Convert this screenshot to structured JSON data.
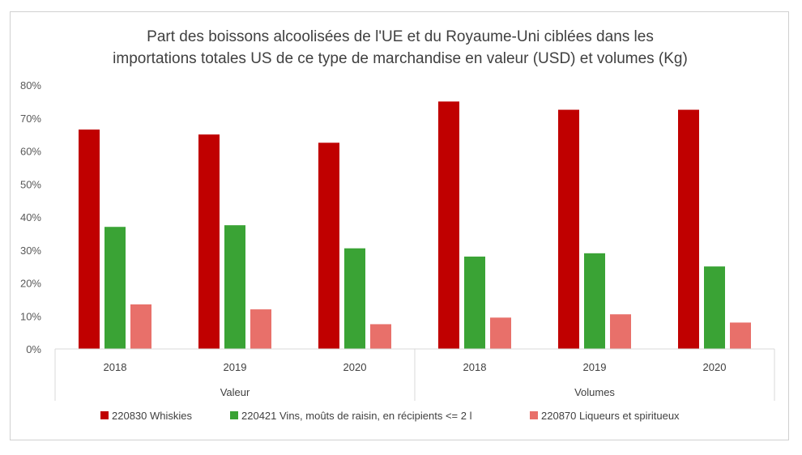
{
  "chart_data": {
    "type": "bar",
    "title_lines": [
      "Part des boissons alcoolisées de l'UE et du Royaume-Uni ciblées dans les",
      "importations totales US de ce type de marchandise en valeur (USD) et volumes (Kg)"
    ],
    "y_ticks": [
      "0%",
      "10%",
      "20%",
      "30%",
      "40%",
      "50%",
      "60%",
      "70%",
      "80%"
    ],
    "ylim": [
      0,
      80
    ],
    "y_unit": "%",
    "grid": false,
    "legend_position": "bottom",
    "categories": [
      "2018",
      "2019",
      "2020",
      "2018",
      "2019",
      "2020"
    ],
    "groups": [
      {
        "label": "Valeur",
        "span": [
          0,
          2
        ]
      },
      {
        "label": "Volumes",
        "span": [
          3,
          5
        ]
      }
    ],
    "series": [
      {
        "name": "220830 Whiskies",
        "color": "#c00000",
        "values": [
          66.5,
          65,
          62.5,
          75,
          72.5,
          72.5
        ]
      },
      {
        "name": "220421 Vins, moûts de raisin, en récipients <= 2 l",
        "color": "#3aa335",
        "values": [
          37,
          37.5,
          30.5,
          28,
          29,
          25
        ]
      },
      {
        "name": "220870 Liqueurs et spiritueux",
        "color": "#e8706a",
        "values": [
          13.5,
          12,
          7.5,
          9.5,
          10.5,
          8
        ]
      }
    ]
  }
}
